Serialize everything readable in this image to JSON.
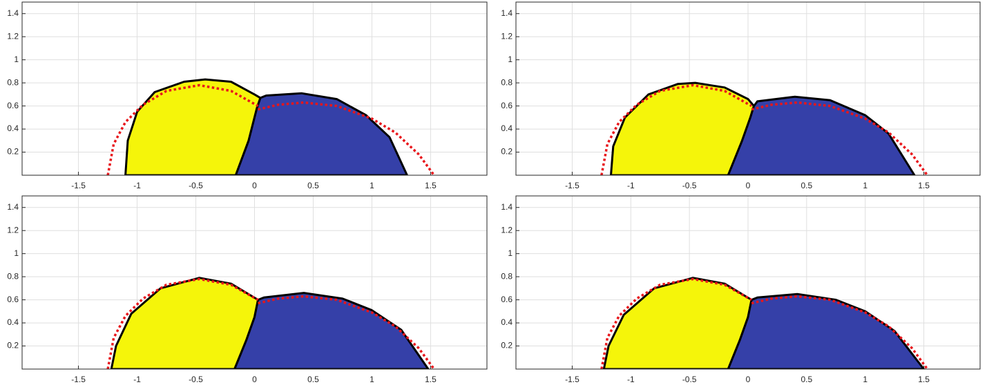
{
  "chart_data": [
    {
      "type": "area",
      "xlim": [
        -1.98,
        1.98
      ],
      "ylim": [
        0,
        1.5
      ],
      "xticks": [
        -1.5,
        -1,
        -0.5,
        0,
        0.5,
        1,
        1.5
      ],
      "yticks": [
        0.2,
        0.4,
        0.6,
        0.8,
        1,
        1.2,
        1.4
      ],
      "grid": true,
      "series": [
        {
          "color": "#f5f50a",
          "edgecolor": "#000000",
          "x": [
            -1.1,
            -1.08,
            -1.0,
            -0.85,
            -0.6,
            -0.42,
            -0.2,
            0,
            0.05,
            0.02,
            -0.05,
            -0.16
          ],
          "values": [
            0,
            0.3,
            0.55,
            0.72,
            0.81,
            0.83,
            0.81,
            0.7,
            0.67,
            0.58,
            0.3,
            0
          ]
        },
        {
          "color": "#3540a8",
          "edgecolor": "#000000",
          "x": [
            -0.16,
            -0.05,
            0.02,
            0.05,
            0.1,
            0.4,
            0.7,
            0.95,
            1.15,
            1.3
          ],
          "values": [
            0,
            0.3,
            0.58,
            0.67,
            0.69,
            0.71,
            0.66,
            0.52,
            0.33,
            0
          ]
        },
        {
          "color": "#e8161b",
          "linestyle": "dotted",
          "x": [
            -1.25,
            -1.2,
            -1.1,
            -0.95,
            -0.75,
            -0.47,
            -0.2,
            0.03
          ],
          "values": [
            0,
            0.27,
            0.46,
            0.61,
            0.73,
            0.78,
            0.73,
            0.6
          ]
        },
        {
          "color": "#e8161b",
          "linestyle": "dotted",
          "x": [
            0.03,
            0.2,
            0.42,
            0.7,
            1.0,
            1.2,
            1.4,
            1.53
          ],
          "values": [
            0.57,
            0.61,
            0.63,
            0.6,
            0.49,
            0.37,
            0.18,
            0
          ]
        }
      ]
    },
    {
      "type": "area",
      "xlim": [
        -1.98,
        1.98
      ],
      "ylim": [
        0,
        1.5
      ],
      "xticks": [
        -1.5,
        -1,
        -0.5,
        0,
        0.5,
        1,
        1.5
      ],
      "yticks": [
        0.2,
        0.4,
        0.6,
        0.8,
        1,
        1.2,
        1.4
      ],
      "grid": true,
      "series": [
        {
          "color": "#f5f50a",
          "edgecolor": "#000000",
          "x": [
            -1.17,
            -1.15,
            -1.05,
            -0.85,
            -0.6,
            -0.45,
            -0.2,
            0,
            0.05,
            0.02,
            -0.05,
            -0.17
          ],
          "values": [
            0,
            0.25,
            0.5,
            0.7,
            0.79,
            0.8,
            0.76,
            0.66,
            0.6,
            0.5,
            0.3,
            0
          ]
        },
        {
          "color": "#3540a8",
          "edgecolor": "#000000",
          "x": [
            -0.17,
            -0.05,
            0.02,
            0.05,
            0.08,
            0.4,
            0.7,
            1.0,
            1.2,
            1.42
          ],
          "values": [
            0,
            0.3,
            0.5,
            0.6,
            0.64,
            0.68,
            0.65,
            0.52,
            0.36,
            0
          ]
        },
        {
          "color": "#e8161b",
          "linestyle": "dotted",
          "x": [
            -1.25,
            -1.2,
            -1.1,
            -0.95,
            -0.75,
            -0.47,
            -0.2,
            0.03
          ],
          "values": [
            0,
            0.27,
            0.46,
            0.61,
            0.73,
            0.78,
            0.73,
            0.6
          ]
        },
        {
          "color": "#e8161b",
          "linestyle": "dotted",
          "x": [
            0.03,
            0.2,
            0.42,
            0.7,
            1.0,
            1.2,
            1.4,
            1.53
          ],
          "values": [
            0.57,
            0.61,
            0.63,
            0.6,
            0.49,
            0.37,
            0.18,
            0
          ]
        }
      ]
    },
    {
      "type": "area",
      "xlim": [
        -1.98,
        1.98
      ],
      "ylim": [
        0,
        1.5
      ],
      "xticks": [
        -1.5,
        -1,
        -0.5,
        0,
        0.5,
        1,
        1.5
      ],
      "yticks": [
        0.2,
        0.4,
        0.6,
        0.8,
        1,
        1.2,
        1.4
      ],
      "grid": true,
      "series": [
        {
          "color": "#f5f50a",
          "edgecolor": "#000000",
          "x": [
            -1.22,
            -1.18,
            -1.05,
            -0.8,
            -0.47,
            -0.2,
            0.03,
            0,
            -0.07,
            -0.17
          ],
          "values": [
            0,
            0.2,
            0.48,
            0.7,
            0.79,
            0.74,
            0.6,
            0.45,
            0.25,
            0
          ]
        },
        {
          "color": "#3540a8",
          "edgecolor": "#000000",
          "x": [
            -0.17,
            -0.07,
            0,
            0.03,
            0.08,
            0.42,
            0.75,
            1.0,
            1.25,
            1.48
          ],
          "values": [
            0,
            0.25,
            0.45,
            0.6,
            0.62,
            0.66,
            0.61,
            0.51,
            0.34,
            0
          ]
        },
        {
          "color": "#e8161b",
          "linestyle": "dotted",
          "x": [
            -1.25,
            -1.2,
            -1.1,
            -0.95,
            -0.75,
            -0.47,
            -0.2,
            0.03
          ],
          "values": [
            0,
            0.27,
            0.46,
            0.61,
            0.73,
            0.78,
            0.73,
            0.6
          ]
        },
        {
          "color": "#e8161b",
          "linestyle": "dotted",
          "x": [
            0.03,
            0.2,
            0.42,
            0.7,
            1.0,
            1.2,
            1.4,
            1.53
          ],
          "values": [
            0.57,
            0.61,
            0.63,
            0.6,
            0.49,
            0.37,
            0.18,
            0
          ]
        }
      ]
    },
    {
      "type": "area",
      "xlim": [
        -1.98,
        1.98
      ],
      "ylim": [
        0,
        1.5
      ],
      "xticks": [
        -1.5,
        -1,
        -0.5,
        0,
        0.5,
        1,
        1.5
      ],
      "yticks": [
        0.2,
        0.4,
        0.6,
        0.8,
        1,
        1.2,
        1.4
      ],
      "grid": true,
      "series": [
        {
          "color": "#f5f50a",
          "edgecolor": "#000000",
          "x": [
            -1.23,
            -1.19,
            -1.06,
            -0.8,
            -0.47,
            -0.2,
            0.03,
            0,
            -0.07,
            -0.17
          ],
          "values": [
            0,
            0.2,
            0.47,
            0.7,
            0.79,
            0.74,
            0.6,
            0.45,
            0.25,
            0
          ]
        },
        {
          "color": "#3540a8",
          "edgecolor": "#000000",
          "x": [
            -0.17,
            -0.07,
            0,
            0.03,
            0.08,
            0.42,
            0.75,
            1.0,
            1.25,
            1.5
          ],
          "values": [
            0,
            0.25,
            0.45,
            0.6,
            0.62,
            0.65,
            0.6,
            0.5,
            0.33,
            0
          ]
        },
        {
          "color": "#e8161b",
          "linestyle": "dotted",
          "x": [
            -1.25,
            -1.2,
            -1.1,
            -0.95,
            -0.75,
            -0.47,
            -0.2,
            0.03
          ],
          "values": [
            0,
            0.27,
            0.46,
            0.61,
            0.73,
            0.78,
            0.73,
            0.6
          ]
        },
        {
          "color": "#e8161b",
          "linestyle": "dotted",
          "x": [
            0.03,
            0.2,
            0.42,
            0.7,
            1.0,
            1.2,
            1.4,
            1.53
          ],
          "values": [
            0.57,
            0.61,
            0.63,
            0.6,
            0.49,
            0.37,
            0.18,
            0
          ]
        }
      ]
    }
  ]
}
